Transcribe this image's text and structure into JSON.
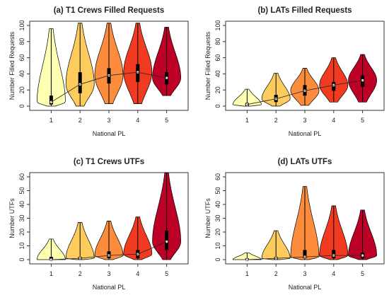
{
  "colors": [
    "#ffffb2",
    "#fecc5c",
    "#fd8d3c",
    "#f03b20",
    "#bd0026"
  ],
  "chart_data": [
    {
      "type": "violin",
      "title": "(a) T1 Crews Filled Requests",
      "xlabel": "National PL",
      "ylabel": "Number Filled Requests",
      "categories": [
        "1",
        "2",
        "3",
        "4",
        "5"
      ],
      "ylim": [
        0,
        100
      ],
      "yticks": [
        0,
        20,
        40,
        60,
        80,
        100
      ],
      "medians": [
        5,
        27,
        38,
        42,
        35
      ],
      "quartiles": [
        [
          2,
          13
        ],
        [
          16,
          42
        ],
        [
          28,
          47
        ],
        [
          30,
          52
        ],
        [
          27,
          42
        ]
      ],
      "range": [
        [
          0,
          96
        ],
        [
          0,
          103
        ],
        [
          3,
          103
        ],
        [
          3,
          103
        ],
        [
          13,
          98
        ]
      ]
    },
    {
      "type": "violin",
      "title": "(b) LATs Filled Requests",
      "xlabel": "National PL",
      "ylabel": "Number Filled Requests",
      "categories": [
        "1",
        "2",
        "3",
        "4",
        "5"
      ],
      "ylim": [
        0,
        100
      ],
      "yticks": [
        0,
        20,
        40,
        60,
        80,
        100
      ],
      "medians": [
        2,
        9,
        19,
        26,
        32
      ],
      "quartiles": [
        [
          0,
          4
        ],
        [
          5,
          14
        ],
        [
          13,
          26
        ],
        [
          19,
          30
        ],
        [
          24,
          38
        ]
      ],
      "range": [
        [
          0,
          21
        ],
        [
          0,
          41
        ],
        [
          1,
          47
        ],
        [
          5,
          60
        ],
        [
          5,
          64
        ]
      ]
    },
    {
      "type": "violin",
      "title": "(c) T1 Crews UTFs",
      "xlabel": "National PL",
      "ylabel": "Number UTFs",
      "categories": [
        "1",
        "2",
        "3",
        "4",
        "5"
      ],
      "ylim": [
        0,
        60
      ],
      "yticks": [
        0,
        10,
        20,
        30,
        40,
        50,
        60
      ],
      "medians": [
        0,
        1,
        3,
        4,
        13
      ],
      "quartiles": [
        [
          0,
          2
        ],
        [
          0,
          2
        ],
        [
          1,
          6
        ],
        [
          1,
          7
        ],
        [
          7,
          21
        ]
      ],
      "range": [
        [
          0,
          15
        ],
        [
          0,
          27
        ],
        [
          0,
          28
        ],
        [
          0,
          31
        ],
        [
          0,
          63
        ]
      ]
    },
    {
      "type": "violin",
      "title": "(d) LATs UTFs",
      "xlabel": "National PL",
      "ylabel": "Number UTFs",
      "categories": [
        "1",
        "2",
        "3",
        "4",
        "5"
      ],
      "ylim": [
        0,
        60
      ],
      "yticks": [
        0,
        10,
        20,
        30,
        40,
        50,
        60
      ],
      "medians": [
        0,
        1,
        2,
        3,
        3
      ],
      "quartiles": [
        [
          0,
          1
        ],
        [
          0,
          2
        ],
        [
          1,
          7
        ],
        [
          1,
          7
        ],
        [
          1,
          5
        ]
      ],
      "range": [
        [
          0,
          5
        ],
        [
          0,
          21
        ],
        [
          0,
          53
        ],
        [
          0,
          39
        ],
        [
          0,
          36
        ]
      ]
    }
  ]
}
